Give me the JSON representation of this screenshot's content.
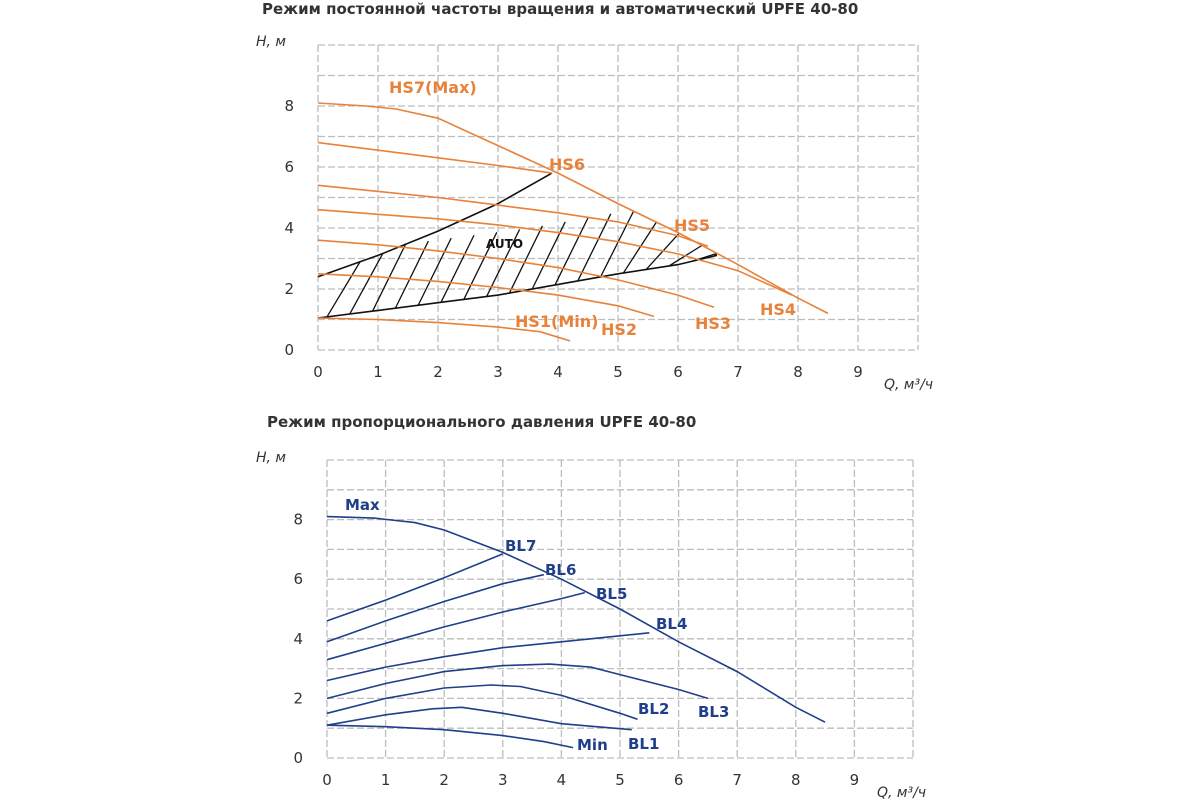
{
  "chart_data": [
    {
      "type": "line",
      "title": "Режим постоянной частоты вращения и автоматический  UPFE 40-80",
      "xlabel": "Q, м³/ч",
      "ylabel": "H, м",
      "xlim": [
        0,
        10
      ],
      "ylim": [
        0,
        10
      ],
      "x_ticks": [
        "0",
        "1",
        "2",
        "3",
        "4",
        "5",
        "6",
        "7",
        "8",
        "9"
      ],
      "y_ticks": [
        "0",
        "2",
        "4",
        "6",
        "8"
      ],
      "grid": true,
      "color": "#e8823a",
      "series": [
        {
          "name": "HS7(Max)",
          "points": [
            [
              0,
              8.1
            ],
            [
              0.8,
              8.0
            ],
            [
              1.3,
              7.9
            ],
            [
              2,
              7.6
            ],
            [
              3,
              6.7
            ],
            [
              4,
              5.8
            ],
            [
              5,
              4.8
            ],
            [
              6,
              3.85
            ],
            [
              7,
              2.8
            ],
            [
              8,
              1.7
            ],
            [
              8.5,
              1.2
            ]
          ]
        },
        {
          "name": "HS6",
          "points": [
            [
              0,
              6.8
            ],
            [
              1,
              6.55
            ],
            [
              2,
              6.3
            ],
            [
              3,
              6.05
            ],
            [
              3.9,
              5.8
            ]
          ]
        },
        {
          "name": "HS5",
          "points": [
            [
              0,
              5.4
            ],
            [
              1,
              5.2
            ],
            [
              2,
              5.0
            ],
            [
              3,
              4.75
            ],
            [
              4,
              4.5
            ],
            [
              5,
              4.2
            ],
            [
              6,
              3.75
            ],
            [
              6.5,
              3.4
            ]
          ]
        },
        {
          "name": "HS4",
          "points": [
            [
              0,
              4.6
            ],
            [
              1,
              4.45
            ],
            [
              2,
              4.3
            ],
            [
              3,
              4.1
            ],
            [
              4,
              3.85
            ],
            [
              5,
              3.55
            ],
            [
              6,
              3.15
            ],
            [
              7,
              2.6
            ],
            [
              7.9,
              1.8
            ]
          ]
        },
        {
          "name": "HS3",
          "points": [
            [
              0,
              3.6
            ],
            [
              1,
              3.45
            ],
            [
              2,
              3.25
            ],
            [
              3,
              3.0
            ],
            [
              4,
              2.7
            ],
            [
              5,
              2.3
            ],
            [
              6,
              1.8
            ],
            [
              6.6,
              1.4
            ]
          ]
        },
        {
          "name": "HS2",
          "points": [
            [
              0,
              2.5
            ],
            [
              1,
              2.4
            ],
            [
              2,
              2.25
            ],
            [
              3,
              2.05
            ],
            [
              4,
              1.8
            ],
            [
              5,
              1.45
            ],
            [
              5.6,
              1.1
            ]
          ]
        },
        {
          "name": "HS1(Min)",
          "points": [
            [
              0,
              1.05
            ],
            [
              1,
              1.0
            ],
            [
              2,
              0.9
            ],
            [
              3,
              0.75
            ],
            [
              3.7,
              0.6
            ],
            [
              4.2,
              0.3
            ]
          ]
        }
      ],
      "auto_region": {
        "label": "AUTO",
        "upper": [
          [
            0,
            2.4
          ],
          [
            1,
            3.1
          ],
          [
            2,
            3.9
          ],
          [
            3,
            4.8
          ],
          [
            3.9,
            5.8
          ]
        ],
        "lower": [
          [
            0,
            1.05
          ],
          [
            1,
            1.3
          ],
          [
            2,
            1.55
          ],
          [
            3,
            1.8
          ],
          [
            4,
            2.15
          ],
          [
            5,
            2.5
          ],
          [
            6,
            2.8
          ],
          [
            6.65,
            3.1
          ]
        ]
      },
      "labels": {
        "title": "Режим постоянной частоты вращения и автоматический  UPFE 40-80",
        "ylabel": "H, м",
        "xlabel": "Q, м³/ч",
        "hs7": "HS7(Max)",
        "hs6": "HS6",
        "hs5": "HS5",
        "hs4": "HS4",
        "hs3": "HS3",
        "hs2": "HS2",
        "hs1": "HS1(Min)",
        "auto": "AUTO"
      }
    },
    {
      "type": "line",
      "title": "Режим пропорционального давления UPFE 40-80",
      "xlabel": "Q, м³/ч",
      "ylabel": "H, м",
      "xlim": [
        0,
        10
      ],
      "ylim": [
        0,
        10
      ],
      "x_ticks": [
        "0",
        "1",
        "2",
        "3",
        "4",
        "5",
        "6",
        "7",
        "8",
        "9"
      ],
      "y_ticks": [
        "0",
        "2",
        "4",
        "6",
        "8"
      ],
      "grid": true,
      "color": "#1f3f8a",
      "series": [
        {
          "name": "Max",
          "points": [
            [
              0,
              8.1
            ],
            [
              0.8,
              8.05
            ],
            [
              1.5,
              7.9
            ],
            [
              2,
              7.65
            ],
            [
              3,
              6.9
            ],
            [
              4,
              6.0
            ],
            [
              5,
              5.0
            ],
            [
              6,
              3.9
            ],
            [
              7,
              2.9
            ],
            [
              8,
              1.7
            ],
            [
              8.5,
              1.2
            ]
          ]
        },
        {
          "name": "BL7",
          "points": [
            [
              0,
              4.6
            ],
            [
              1,
              5.3
            ],
            [
              2,
              6.05
            ],
            [
              3,
              6.85
            ]
          ]
        },
        {
          "name": "BL6",
          "points": [
            [
              0,
              3.9
            ],
            [
              1,
              4.6
            ],
            [
              2,
              5.25
            ],
            [
              3,
              5.85
            ],
            [
              3.7,
              6.15
            ]
          ]
        },
        {
          "name": "BL5",
          "points": [
            [
              0,
              3.3
            ],
            [
              1,
              3.85
            ],
            [
              2,
              4.4
            ],
            [
              3,
              4.9
            ],
            [
              4,
              5.35
            ],
            [
              4.4,
              5.55
            ]
          ]
        },
        {
          "name": "BL4",
          "points": [
            [
              0,
              2.6
            ],
            [
              1,
              3.05
            ],
            [
              2,
              3.4
            ],
            [
              3,
              3.7
            ],
            [
              4,
              3.9
            ],
            [
              5,
              4.1
            ],
            [
              5.5,
              4.2
            ]
          ]
        },
        {
          "name": "BL3",
          "points": [
            [
              0,
              2.0
            ],
            [
              1,
              2.5
            ],
            [
              2,
              2.9
            ],
            [
              3,
              3.1
            ],
            [
              3.8,
              3.15
            ],
            [
              4.5,
              3.05
            ],
            [
              5,
              2.8
            ],
            [
              6,
              2.3
            ],
            [
              6.5,
              2.0
            ]
          ]
        },
        {
          "name": "BL2",
          "points": [
            [
              0,
              1.5
            ],
            [
              1,
              2.0
            ],
            [
              2,
              2.35
            ],
            [
              2.8,
              2.45
            ],
            [
              3.3,
              2.4
            ],
            [
              4,
              2.1
            ],
            [
              5,
              1.5
            ],
            [
              5.3,
              1.3
            ]
          ]
        },
        {
          "name": "BL1",
          "points": [
            [
              0,
              1.1
            ],
            [
              1,
              1.45
            ],
            [
              1.8,
              1.65
            ],
            [
              2.3,
              1.7
            ],
            [
              3,
              1.5
            ],
            [
              4,
              1.15
            ],
            [
              5.2,
              0.95
            ]
          ]
        },
        {
          "name": "Min",
          "points": [
            [
              0,
              1.1
            ],
            [
              1,
              1.05
            ],
            [
              2,
              0.95
            ],
            [
              3,
              0.75
            ],
            [
              3.7,
              0.55
            ],
            [
              4.2,
              0.35
            ]
          ]
        }
      ],
      "labels": {
        "title": "Режим пропорционального давления UPFE 40-80",
        "ylabel": "H, м",
        "xlabel": "Q, м³/ч",
        "max": "Max",
        "bl7": "BL7",
        "bl6": "BL6",
        "bl5": "BL5",
        "bl4": "BL4",
        "bl3": "BL3",
        "bl2": "BL2",
        "bl1": "BL1",
        "min": "Min"
      }
    }
  ]
}
